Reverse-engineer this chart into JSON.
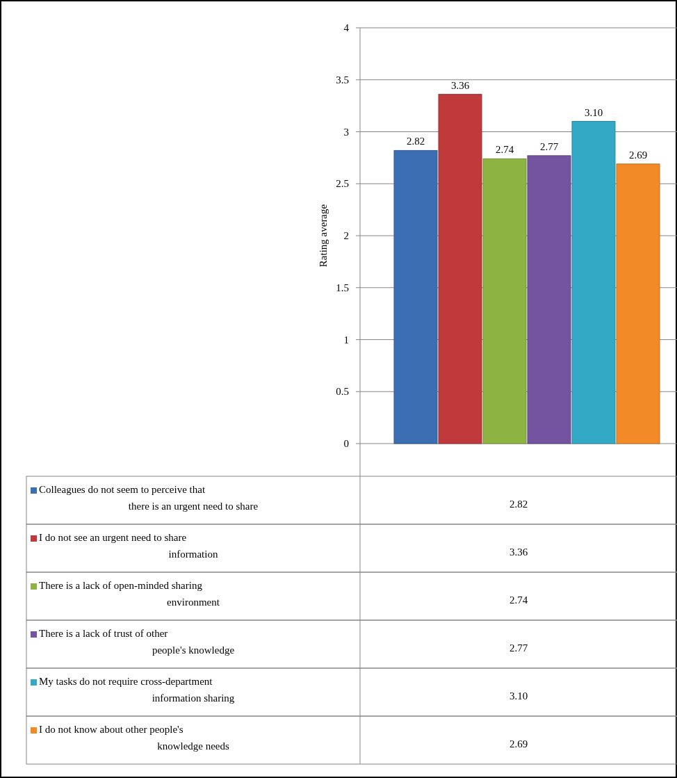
{
  "chart_data": {
    "type": "bar",
    "ylabel": "Rating average",
    "categories": [
      null
    ],
    "series": [
      {
        "name": "Colleagues do not seem to perceive that there is an urgent need to share",
        "color": "#3c6eb4",
        "values": [
          2.82
        ],
        "value_labels": [
          "2.82"
        ]
      },
      {
        "name": "I do not see an urgent need to share information",
        "color": "#c0393b",
        "values": [
          3.36
        ],
        "value_labels": [
          "3.36"
        ]
      },
      {
        "name": "There is a lack of open-minded sharing environment",
        "color": "#8db443",
        "values": [
          2.74
        ],
        "value_labels": [
          "2.74"
        ]
      },
      {
        "name": "There is a lack of trust of other people's knowledge",
        "color": "#7454a0",
        "values": [
          2.77
        ],
        "value_labels": [
          "2.77"
        ]
      },
      {
        "name": "My tasks do not require cross-department information sharing",
        "color": "#33a9c6",
        "values": [
          3.1
        ],
        "value_labels": [
          "3.10"
        ]
      },
      {
        "name": "I do not know about other people's knowledge needs",
        "color": "#f18a27",
        "values": [
          2.69
        ],
        "value_labels": [
          "2.69"
        ]
      }
    ],
    "ylim": [
      0,
      4
    ],
    "yticks": [
      0,
      0.5,
      1,
      1.5,
      2,
      2.5,
      3,
      3.5,
      4
    ],
    "grid": "y",
    "legend": "bottom"
  }
}
